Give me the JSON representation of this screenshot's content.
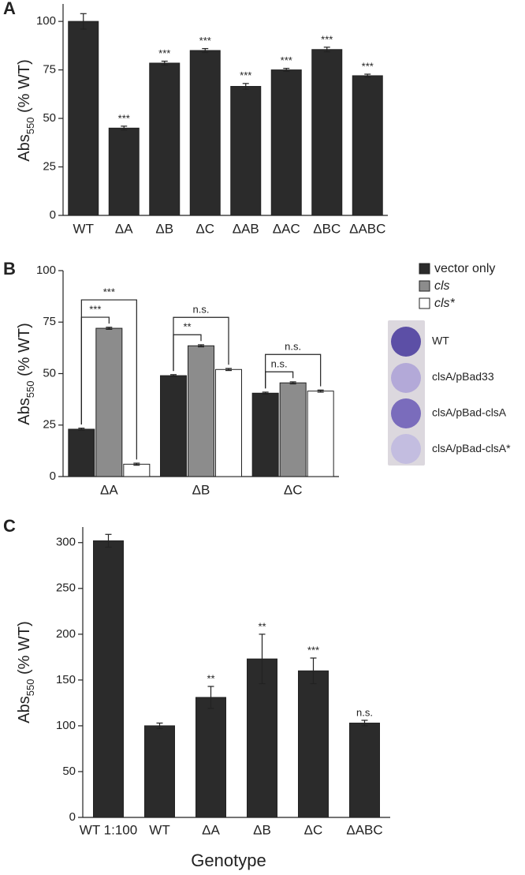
{
  "chart_data": [
    {
      "type": "bar",
      "panel": "A",
      "ylabel": [
        "Abs",
        "550",
        " (% WT)"
      ],
      "categories": [
        "WT",
        "ΔA",
        "ΔB",
        "ΔC",
        "ΔAB",
        "ΔAC",
        "ΔBC",
        "ΔABC"
      ],
      "values": [
        100,
        45,
        78.5,
        85,
        66.5,
        75,
        85.5,
        72
      ],
      "errors": [
        4,
        1,
        1,
        1,
        1.5,
        0.8,
        1.2,
        0.8
      ],
      "annotations": [
        null,
        "***",
        "***",
        "***",
        "***",
        "***",
        "***",
        "***"
      ],
      "color": "#2b2b2b",
      "ylim": [
        0,
        109
      ],
      "yticks": [
        0,
        25,
        50,
        75,
        100
      ]
    },
    {
      "type": "bar",
      "panel": "B",
      "ylabel": [
        "Abs",
        "550",
        " (% WT)"
      ],
      "categories": [
        "ΔA",
        "ΔB",
        "ΔC"
      ],
      "series": [
        {
          "name": "vector only",
          "color": "#2b2b2b",
          "values": [
            23,
            49,
            40.5
          ],
          "errors": [
            0.5,
            0.5,
            0.5
          ]
        },
        {
          "name": "cls",
          "color": "#8c8c8c",
          "values": [
            72,
            63.5,
            45.5
          ],
          "errors": [
            0.5,
            0.5,
            0.5
          ]
        },
        {
          "name": "cls*",
          "color": "#ffffff",
          "values": [
            6,
            52,
            41.5
          ],
          "errors": [
            0.5,
            0.5,
            0.5
          ]
        }
      ],
      "brackets": [
        [
          "***",
          "***"
        ],
        [
          "**",
          "n.s."
        ],
        [
          "n.s.",
          "n.s."
        ]
      ],
      "inset_labels": [
        "WT",
        "clsA/pBad33",
        "clsA/pBad-clsA",
        "clsA/pBad-clsA*"
      ],
      "ylim": [
        0,
        100
      ],
      "yticks": [
        0,
        25,
        50,
        75,
        100
      ]
    },
    {
      "type": "bar",
      "panel": "C",
      "ylabel": [
        "Abs",
        "550",
        " (% WT)"
      ],
      "xlabel": "Genotype",
      "categories": [
        "WT 1:100",
        "WT",
        "ΔA",
        "ΔB",
        "ΔC",
        "ΔABC"
      ],
      "values": [
        302,
        100,
        131,
        173,
        160,
        103
      ],
      "errors": [
        7,
        3,
        12,
        27,
        14,
        3
      ],
      "annotations": [
        null,
        null,
        "**",
        "**",
        "***",
        "n.s."
      ],
      "color": "#2b2b2b",
      "ylim": [
        0,
        317
      ],
      "yticks": [
        0,
        50,
        100,
        150,
        200,
        250,
        300
      ]
    }
  ]
}
